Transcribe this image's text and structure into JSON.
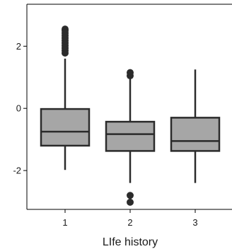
{
  "chart_data": {
    "type": "box",
    "title": "",
    "xlabel": "LIfe history",
    "ylabel": "",
    "categories": [
      "1",
      "2",
      "3"
    ],
    "yticks": [
      -2,
      0,
      2
    ],
    "ylim": [
      -3.25,
      3.35
    ],
    "grid": false,
    "box_fill": "#a6a6a6",
    "line_color": "#2b2b2b",
    "boxes": [
      {
        "category": "1",
        "whisker_low": -1.98,
        "q1": -1.2,
        "median": -0.75,
        "q3": -0.02,
        "whisker_high": 1.6,
        "outliers": [
          1.78,
          1.86,
          1.94,
          2.02,
          2.1,
          2.18,
          2.26,
          2.34,
          2.42,
          2.5,
          2.55
        ]
      },
      {
        "category": "2",
        "whisker_low": -2.4,
        "q1": -1.37,
        "median": -0.83,
        "q3": -0.43,
        "whisker_high": 1.0,
        "outliers": [
          1.05,
          1.15,
          -2.8,
          -3.02
        ]
      },
      {
        "category": "3",
        "whisker_low": -2.4,
        "q1": -1.37,
        "median": -1.05,
        "q3": -0.3,
        "whisker_high": 1.25,
        "outliers": []
      }
    ]
  }
}
